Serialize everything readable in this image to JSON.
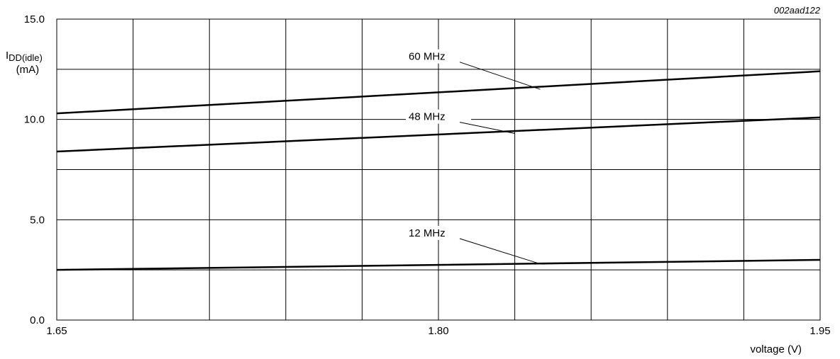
{
  "figure_code": "002aad122",
  "chart_data": {
    "type": "line",
    "y_axis_label": {
      "main": "I",
      "subscript": "DD(idle)",
      "unit": "(mA)"
    },
    "xlabel": "voltage (V)",
    "xlim": [
      1.65,
      1.95
    ],
    "ylim": [
      0,
      15
    ],
    "x_ticks": [
      {
        "value": 1.65,
        "label": "1.65"
      },
      {
        "value": 1.8,
        "label": "1.80"
      },
      {
        "value": 1.95,
        "label": "1.95"
      }
    ],
    "x_grid": [
      1.65,
      1.68,
      1.71,
      1.74,
      1.77,
      1.8,
      1.83,
      1.86,
      1.89,
      1.92,
      1.95
    ],
    "y_ticks": [
      {
        "value": 0,
        "label": "0.0"
      },
      {
        "value": 5,
        "label": "5.0"
      },
      {
        "value": 10,
        "label": "10.0"
      },
      {
        "value": 15,
        "label": "15.0"
      }
    ],
    "y_grid": [
      0,
      2.5,
      5,
      7.5,
      10,
      12.5,
      15
    ],
    "grid": true,
    "series": [
      {
        "name": "60 MHz",
        "x": [
          1.65,
          1.95
        ],
        "y": [
          10.3,
          12.4
        ],
        "label_at": {
          "x": 1.8,
          "y": 13.0
        },
        "pointer_to": {
          "x": 1.84,
          "y": 11.5
        }
      },
      {
        "name": "48 MHz",
        "x": [
          1.65,
          1.95
        ],
        "y": [
          8.4,
          10.1
        ],
        "label_at": {
          "x": 1.8,
          "y": 10.0
        },
        "pointer_to": {
          "x": 1.83,
          "y": 9.3
        }
      },
      {
        "name": "12 MHz",
        "x": [
          1.65,
          1.95
        ],
        "y": [
          2.5,
          3.0
        ],
        "label_at": {
          "x": 1.8,
          "y": 4.2
        },
        "pointer_to": {
          "x": 1.84,
          "y": 2.8
        }
      }
    ]
  }
}
